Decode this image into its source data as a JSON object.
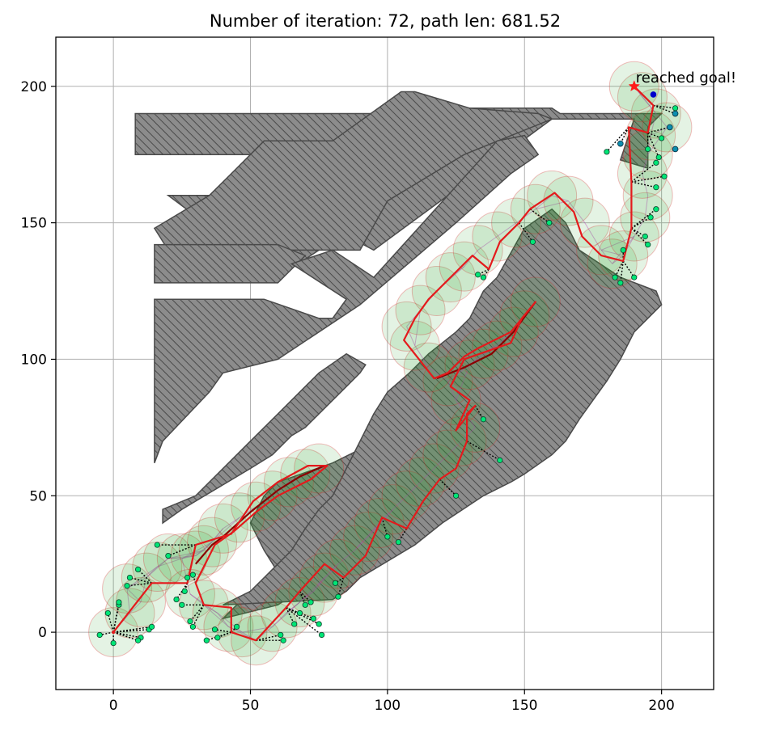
{
  "chart_data": {
    "type": "scatter",
    "title": "Number of iteration: 72, path len: 681.52",
    "xlabel": "",
    "ylabel": "",
    "xlim": [
      -21,
      219
    ],
    "ylim": [
      -21,
      218
    ],
    "xticks": [
      0,
      50,
      100,
      150,
      200
    ],
    "yticks": [
      0,
      50,
      100,
      150,
      200
    ],
    "grid": true,
    "annotation": {
      "text": "reached goal!",
      "x": 190,
      "y": 200
    },
    "start": [
      0,
      0
    ],
    "goal": [
      190,
      200
    ],
    "colors": {
      "obstacle_fill": "#8c8c8c",
      "obstacle_edge": "#4a4a4a",
      "path": "#e41a1c",
      "branch": "#8b0000",
      "sample_circle_fill": "#2ca02c",
      "sample_circle_edge": "#d62728",
      "sample_node": "#00e676",
      "frontier_node": "#0d8fb0",
      "goal_marker": "#ff1a1a",
      "extra_node": "#0000cc",
      "corridor_edges": "#cc33cc"
    },
    "obstacles": [
      [
        [
          8,
          190
        ],
        [
          100,
          190
        ],
        [
          103,
          192
        ],
        [
          160,
          192
        ],
        [
          163,
          190
        ],
        [
          200,
          190
        ],
        [
          195,
          185
        ],
        [
          195,
          170
        ],
        [
          185,
          173
        ],
        [
          190,
          188
        ],
        [
          160,
          188
        ],
        [
          95,
          140
        ],
        [
          80,
          148
        ],
        [
          70,
          145
        ],
        [
          75,
          140
        ],
        [
          60,
          130
        ],
        [
          20,
          160
        ],
        [
          80,
          160
        ],
        [
          80,
          175
        ],
        [
          8,
          175
        ]
      ],
      [
        [
          15,
          148
        ],
        [
          35,
          160
        ],
        [
          45,
          170
        ],
        [
          55,
          180
        ],
        [
          80,
          180
        ],
        [
          105,
          198
        ],
        [
          110,
          198
        ],
        [
          130,
          192
        ],
        [
          155,
          190
        ],
        [
          160,
          188
        ],
        [
          128,
          175
        ],
        [
          100,
          158
        ],
        [
          90,
          140
        ],
        [
          20,
          140
        ],
        [
          15,
          148
        ]
      ],
      [
        [
          15,
          142
        ],
        [
          60,
          142
        ],
        [
          70,
          138
        ],
        [
          60,
          128
        ],
        [
          15,
          128
        ]
      ],
      [
        [
          15,
          122
        ],
        [
          55,
          122
        ],
        [
          75,
          115
        ],
        [
          80,
          115
        ],
        [
          85,
          122
        ],
        [
          65,
          135
        ],
        [
          80,
          140
        ],
        [
          95,
          130
        ],
        [
          140,
          180
        ],
        [
          150,
          182
        ],
        [
          155,
          175
        ],
        [
          145,
          168
        ],
        [
          125,
          150
        ],
        [
          90,
          120
        ],
        [
          60,
          100
        ],
        [
          40,
          95
        ],
        [
          35,
          88
        ],
        [
          18,
          70
        ],
        [
          15,
          62
        ],
        [
          15,
          122
        ]
      ],
      [
        [
          60,
          55
        ],
        [
          80,
          62
        ],
        [
          100,
          72
        ],
        [
          108,
          80
        ],
        [
          115,
          88
        ],
        [
          130,
          98
        ],
        [
          140,
          100
        ],
        [
          150,
          105
        ],
        [
          160,
          108
        ],
        [
          165,
          105
        ],
        [
          160,
          96
        ],
        [
          135,
          75
        ],
        [
          120,
          62
        ],
        [
          105,
          50
        ],
        [
          100,
          45
        ],
        [
          90,
          35
        ],
        [
          80,
          25
        ],
        [
          70,
          20
        ],
        [
          65,
          18
        ],
        [
          60,
          22
        ],
        [
          55,
          30
        ],
        [
          50,
          40
        ],
        [
          55,
          50
        ]
      ],
      [
        [
          18,
          40
        ],
        [
          25,
          45
        ],
        [
          50,
          60
        ],
        [
          58,
          65
        ],
        [
          65,
          72
        ],
        [
          70,
          75
        ],
        [
          85,
          90
        ],
        [
          90,
          95
        ],
        [
          92,
          98
        ],
        [
          85,
          102
        ],
        [
          75,
          95
        ],
        [
          60,
          80
        ],
        [
          50,
          70
        ],
        [
          40,
          60
        ],
        [
          30,
          50
        ],
        [
          18,
          45
        ]
      ],
      [
        [
          40,
          5
        ],
        [
          60,
          10
        ],
        [
          75,
          20
        ],
        [
          100,
          45
        ],
        [
          130,
          62
        ],
        [
          145,
          70
        ],
        [
          158,
          85
        ],
        [
          163,
          100
        ],
        [
          165,
          108
        ],
        [
          162,
          112
        ],
        [
          150,
          100
        ],
        [
          145,
          95
        ],
        [
          135,
          80
        ],
        [
          115,
          60
        ],
        [
          100,
          48
        ],
        [
          85,
          35
        ],
        [
          70,
          25
        ],
        [
          55,
          15
        ],
        [
          45,
          10
        ]
      ],
      [
        [
          80,
          12
        ],
        [
          85,
          15
        ],
        [
          90,
          20
        ],
        [
          110,
          32
        ],
        [
          120,
          40
        ],
        [
          135,
          50
        ],
        [
          145,
          55
        ],
        [
          150,
          58
        ],
        [
          160,
          65
        ],
        [
          165,
          70
        ],
        [
          170,
          78
        ],
        [
          175,
          85
        ],
        [
          180,
          92
        ],
        [
          185,
          100
        ],
        [
          190,
          110
        ],
        [
          195,
          115
        ],
        [
          200,
          120
        ],
        [
          198,
          125
        ],
        [
          185,
          130
        ],
        [
          170,
          140
        ],
        [
          165,
          150
        ],
        [
          160,
          155
        ],
        [
          150,
          148
        ],
        [
          140,
          130
        ],
        [
          135,
          125
        ],
        [
          130,
          115
        ],
        [
          125,
          110
        ],
        [
          115,
          102
        ],
        [
          108,
          95
        ],
        [
          100,
          88
        ],
        [
          95,
          80
        ],
        [
          90,
          70
        ],
        [
          85,
          60
        ],
        [
          80,
          50
        ],
        [
          75,
          45
        ],
        [
          70,
          38
        ],
        [
          65,
          30
        ],
        [
          60,
          25
        ],
        [
          55,
          20
        ],
        [
          50,
          15
        ],
        [
          40,
          10
        ]
      ]
    ],
    "sample_circles": [
      [
        0,
        0
      ],
      [
        6,
        7
      ],
      [
        10,
        11
      ],
      [
        5,
        16
      ],
      [
        12,
        20
      ],
      [
        16,
        24
      ],
      [
        20,
        27
      ],
      [
        25,
        27
      ],
      [
        30,
        28
      ],
      [
        33,
        30
      ],
      [
        36,
        33
      ],
      [
        40,
        38
      ],
      [
        46,
        42
      ],
      [
        52,
        46
      ],
      [
        58,
        50
      ],
      [
        64,
        55
      ],
      [
        70,
        58
      ],
      [
        75,
        60
      ],
      [
        28,
        14
      ],
      [
        33,
        10
      ],
      [
        38,
        7
      ],
      [
        42,
        2
      ],
      [
        47,
        0
      ],
      [
        52,
        -3
      ],
      [
        58,
        2
      ],
      [
        63,
        7
      ],
      [
        68,
        11
      ],
      [
        73,
        15
      ],
      [
        77,
        20
      ],
      [
        82,
        25
      ],
      [
        88,
        30
      ],
      [
        93,
        35
      ],
      [
        97,
        40
      ],
      [
        102,
        45
      ],
      [
        107,
        50
      ],
      [
        112,
        55
      ],
      [
        117,
        60
      ],
      [
        122,
        65
      ],
      [
        127,
        70
      ],
      [
        132,
        75
      ],
      [
        125,
        85
      ],
      [
        122,
        92
      ],
      [
        130,
        98
      ],
      [
        135,
        102
      ],
      [
        140,
        105
      ],
      [
        146,
        110
      ],
      [
        150,
        116
      ],
      [
        154,
        121
      ],
      [
        115,
        97
      ],
      [
        110,
        105
      ],
      [
        107,
        112
      ],
      [
        112,
        118
      ],
      [
        118,
        125
      ],
      [
        123,
        130
      ],
      [
        128,
        134
      ],
      [
        133,
        140
      ],
      [
        140,
        145
      ],
      [
        147,
        150
      ],
      [
        154,
        155
      ],
      [
        160,
        160
      ],
      [
        166,
        158
      ],
      [
        172,
        150
      ],
      [
        178,
        140
      ],
      [
        182,
        135
      ],
      [
        186,
        138
      ],
      [
        190,
        145
      ],
      [
        194,
        152
      ],
      [
        195,
        160
      ],
      [
        193,
        168
      ],
      [
        195,
        175
      ],
      [
        196,
        182
      ],
      [
        198,
        190
      ],
      [
        193,
        196
      ],
      [
        190,
        200
      ],
      [
        202,
        185
      ]
    ],
    "tree_branches": [
      [
        [
          118,
          93
        ],
        [
          128,
          97
        ],
        [
          138,
          102
        ],
        [
          146,
          110
        ],
        [
          154,
          121
        ]
      ],
      [
        [
          40,
          35
        ],
        [
          50,
          44
        ],
        [
          60,
          52
        ],
        [
          68,
          57
        ],
        [
          77,
          61
        ]
      ],
      [
        [
          40,
          35
        ],
        [
          36,
          32
        ],
        [
          30,
          25
        ]
      ]
    ],
    "path": [
      [
        0,
        0
      ],
      [
        14,
        18
      ],
      [
        27,
        18
      ],
      [
        30,
        32
      ],
      [
        43,
        36
      ],
      [
        51,
        48
      ],
      [
        60,
        55
      ],
      [
        71,
        61
      ],
      [
        78,
        61
      ],
      [
        72,
        56
      ],
      [
        60,
        50
      ],
      [
        52,
        44
      ],
      [
        44,
        37
      ],
      [
        37,
        32
      ],
      [
        30,
        18
      ],
      [
        33,
        10
      ],
      [
        43,
        9
      ],
      [
        43,
        0
      ],
      [
        52,
        -3
      ],
      [
        63,
        9
      ],
      [
        68,
        15
      ],
      [
        77,
        25
      ],
      [
        84,
        20
      ],
      [
        92,
        28
      ],
      [
        98,
        42
      ],
      [
        107,
        38
      ],
      [
        113,
        48
      ],
      [
        119,
        56
      ],
      [
        125,
        60
      ],
      [
        127,
        65
      ],
      [
        129,
        70
      ],
      [
        129,
        80
      ],
      [
        132,
        83
      ],
      [
        125,
        74
      ],
      [
        130,
        85
      ],
      [
        123,
        90
      ],
      [
        128,
        100
      ],
      [
        145,
        106
      ],
      [
        149,
        115
      ],
      [
        154,
        121
      ],
      [
        145,
        110
      ],
      [
        133,
        104
      ],
      [
        128,
        101
      ],
      [
        122,
        95
      ],
      [
        117,
        93
      ],
      [
        106,
        107
      ],
      [
        110,
        115
      ],
      [
        115,
        122
      ],
      [
        123,
        130
      ],
      [
        131,
        138
      ],
      [
        137,
        133
      ],
      [
        141,
        143
      ],
      [
        148,
        150
      ],
      [
        152,
        155
      ],
      [
        161,
        161
      ],
      [
        168,
        154
      ],
      [
        171,
        145
      ],
      [
        178,
        138
      ],
      [
        186,
        136
      ],
      [
        189,
        148
      ],
      [
        189,
        165
      ],
      [
        188,
        185
      ],
      [
        195,
        183
      ],
      [
        197,
        193
      ],
      [
        190,
        200
      ]
    ],
    "sample_nodes": [
      [
        -5,
        -1
      ],
      [
        0,
        -4
      ],
      [
        -2,
        7
      ],
      [
        2,
        10
      ],
      [
        2,
        11
      ],
      [
        5,
        17
      ],
      [
        6,
        20
      ],
      [
        9,
        23
      ],
      [
        13,
        1
      ],
      [
        14,
        2
      ],
      [
        10,
        -2
      ],
      [
        9,
        -3
      ],
      [
        26,
        15
      ],
      [
        27,
        20
      ],
      [
        29,
        21
      ],
      [
        23,
        12
      ],
      [
        25,
        10
      ],
      [
        28,
        4
      ],
      [
        29,
        2
      ],
      [
        16,
        32
      ],
      [
        20,
        28
      ],
      [
        37,
        1
      ],
      [
        38,
        -2
      ],
      [
        34,
        -3
      ],
      [
        45,
        2
      ],
      [
        61,
        -1
      ],
      [
        62,
        -3
      ],
      [
        66,
        3
      ],
      [
        68,
        7
      ],
      [
        70,
        10
      ],
      [
        72,
        11
      ],
      [
        73,
        5
      ],
      [
        75,
        3
      ],
      [
        76,
        -1
      ],
      [
        82,
        13
      ],
      [
        81,
        18
      ],
      [
        100,
        35
      ],
      [
        104,
        33
      ],
      [
        125,
        50
      ],
      [
        141,
        63
      ],
      [
        135,
        78
      ],
      [
        133,
        131
      ],
      [
        135,
        130
      ],
      [
        153,
        143
      ],
      [
        159,
        150
      ],
      [
        183,
        130
      ],
      [
        185,
        128
      ],
      [
        190,
        130
      ],
      [
        186,
        140
      ],
      [
        194,
        145
      ],
      [
        195,
        142
      ],
      [
        196,
        152
      ],
      [
        198,
        163
      ],
      [
        198,
        155
      ],
      [
        198,
        172
      ],
      [
        195,
        177
      ],
      [
        200,
        181
      ],
      [
        203,
        185
      ],
      [
        205,
        190
      ],
      [
        205,
        192
      ],
      [
        185,
        179
      ],
      [
        180,
        176
      ],
      [
        199,
        174
      ],
      [
        201,
        167
      ]
    ],
    "frontier_nodes": [
      [
        185,
        179
      ],
      [
        203,
        185
      ],
      [
        205,
        190
      ],
      [
        205,
        177
      ]
    ],
    "extra_node": [
      197,
      197
    ]
  }
}
